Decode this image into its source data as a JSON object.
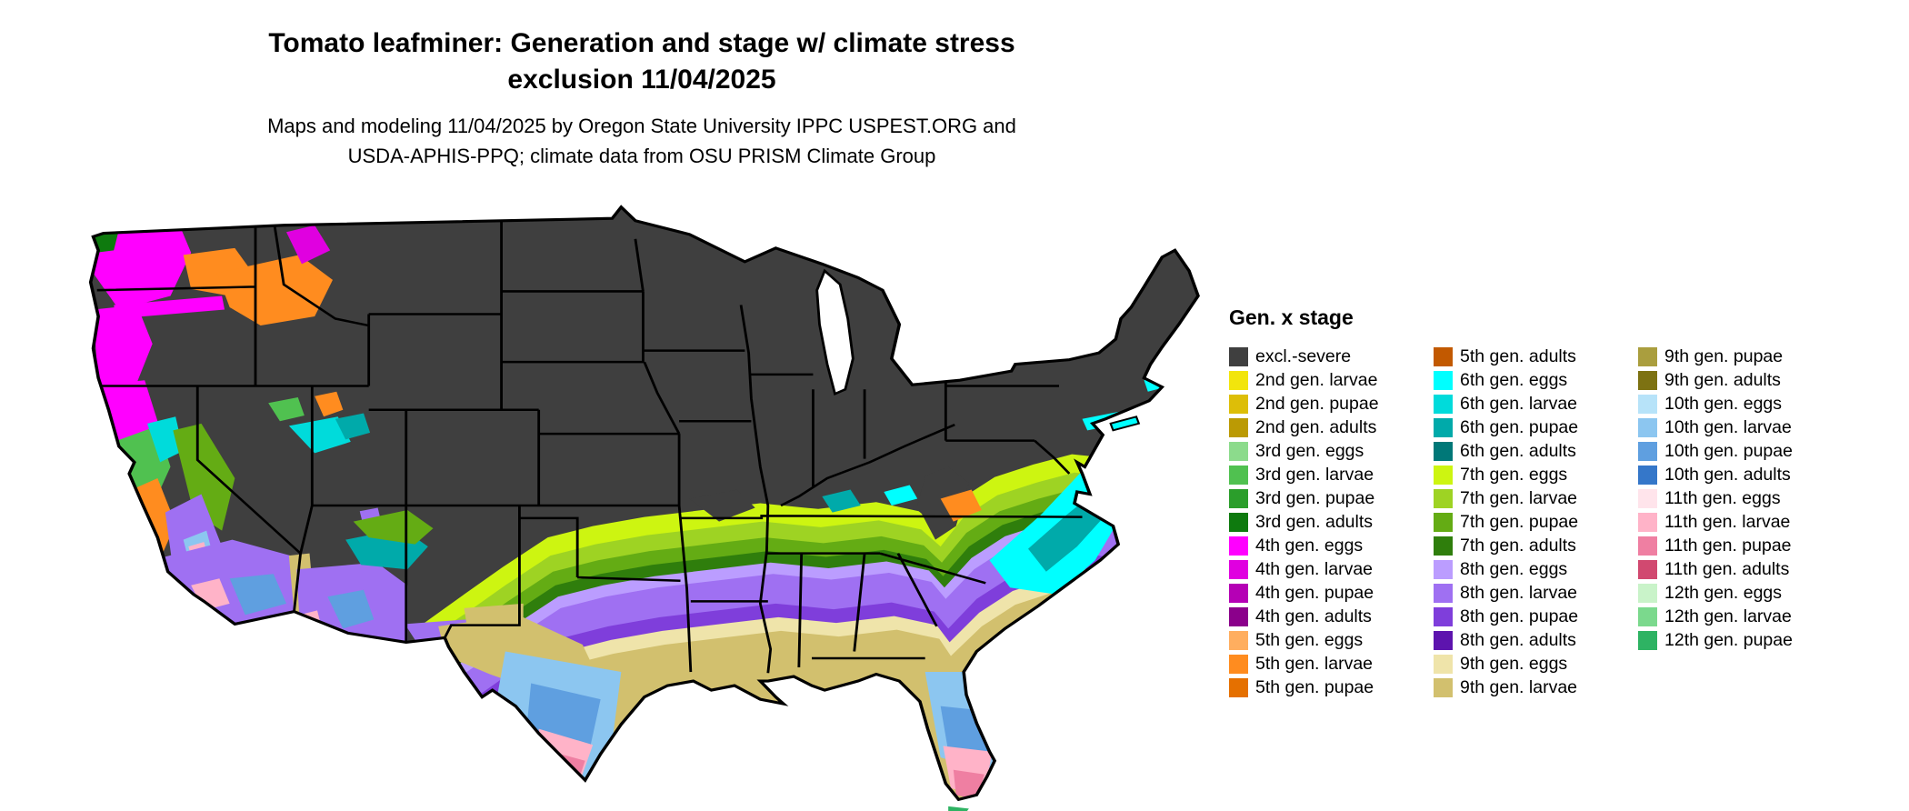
{
  "header": {
    "title_line1": "Tomato leafminer: Generation and stage w/ climate stress",
    "title_line2": "exclusion 11/04/2025",
    "subtitle_line1": "Maps and modeling 11/04/2025 by Oregon State University IPPC USPEST.ORG and",
    "subtitle_line2": "USDA-APHIS-PPQ; climate data from OSU PRISM Climate Group"
  },
  "map": {
    "border_color": "#000000",
    "water_color": "#FFFFFF"
  },
  "legend": {
    "title": "Gen. x stage",
    "columns": [
      [
        {
          "label": "excl.-severe",
          "color": "#3F3F3F"
        },
        {
          "label": "2nd gen. larvae",
          "color": "#F2E50C"
        },
        {
          "label": "2nd gen. pupae",
          "color": "#DDBE08"
        },
        {
          "label": "2nd gen. adults",
          "color": "#BB9A04"
        },
        {
          "label": "3rd gen. eggs",
          "color": "#8CDB8C"
        },
        {
          "label": "3rd gen. larvae",
          "color": "#50C150"
        },
        {
          "label": "3rd gen. pupae",
          "color": "#2B9E2B"
        },
        {
          "label": "3rd gen. adults",
          "color": "#0E7A0E"
        },
        {
          "label": "4th gen. eggs",
          "color": "#FF00FF"
        },
        {
          "label": "4th gen. larvae",
          "color": "#E000E0"
        },
        {
          "label": "4th gen. pupae",
          "color": "#B500B5"
        },
        {
          "label": "4th gen. adults",
          "color": "#8B008B"
        },
        {
          "label": "5th gen. eggs",
          "color": "#FFAE5F"
        },
        {
          "label": "5th gen. larvae",
          "color": "#FF8C1F"
        },
        {
          "label": "5th gen. pupae",
          "color": "#E57000"
        }
      ],
      [
        {
          "label": "5th gen. adults",
          "color": "#C25900"
        },
        {
          "label": "6th gen. eggs",
          "color": "#00FFFF"
        },
        {
          "label": "6th gen. larvae",
          "color": "#00DBDB"
        },
        {
          "label": "6th gen. pupae",
          "color": "#00AAAA"
        },
        {
          "label": "6th gen. adults",
          "color": "#007878"
        },
        {
          "label": "7th gen. eggs",
          "color": "#CDF511"
        },
        {
          "label": "7th gen. larvae",
          "color": "#9ED323"
        },
        {
          "label": "7th gen. pupae",
          "color": "#64AC14"
        },
        {
          "label": "7th gen. adults",
          "color": "#2F7E0C"
        },
        {
          "label": "8th gen. eggs",
          "color": "#BB9DFF"
        },
        {
          "label": "8th gen. larvae",
          "color": "#9F70F2"
        },
        {
          "label": "8th gen. pupae",
          "color": "#7F3EDB"
        },
        {
          "label": "8th gen. adults",
          "color": "#5D14AE"
        },
        {
          "label": "9th gen. eggs",
          "color": "#EFE4AA"
        },
        {
          "label": "9th gen. larvae",
          "color": "#D2C06E"
        }
      ],
      [
        {
          "label": "9th gen. pupae",
          "color": "#AA9E3E"
        },
        {
          "label": "9th gen. adults",
          "color": "#7D7212"
        },
        {
          "label": "10th gen. eggs",
          "color": "#B7E3F9"
        },
        {
          "label": "10th gen. larvae",
          "color": "#8CC6F0"
        },
        {
          "label": "10th gen. pupae",
          "color": "#5F9FE0"
        },
        {
          "label": "10th gen. adults",
          "color": "#3577C9"
        },
        {
          "label": "11th gen. eggs",
          "color": "#FFE4EB"
        },
        {
          "label": "11th gen. larvae",
          "color": "#FFB3C8"
        },
        {
          "label": "11th gen. pupae",
          "color": "#EF7FA2"
        },
        {
          "label": "11th gen. adults",
          "color": "#D14970"
        },
        {
          "label": "12th gen. eggs",
          "color": "#C9F3C9"
        },
        {
          "label": "12th gen. larvae",
          "color": "#7BD98D"
        },
        {
          "label": "12th gen. pupae",
          "color": "#2EB363"
        }
      ]
    ]
  }
}
